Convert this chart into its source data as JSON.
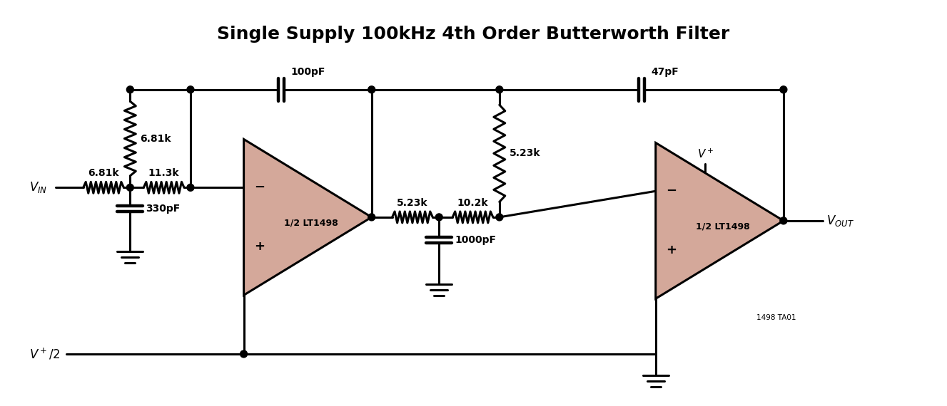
{
  "title": "Single Supply 100kHz 4th Order Butterworth Filter",
  "title_fontsize": 18,
  "title_fontweight": "bold",
  "bg_color": "#ffffff",
  "line_color": "#000000",
  "op_amp_fill": "#d4a89a",
  "op_amp_edge": "#000000",
  "lw": 2.2,
  "labels": {
    "r1": "6.81k",
    "r2": "6.81k",
    "r3": "11.3k",
    "c1": "330pF",
    "c2": "100pF",
    "r4": "5.23k",
    "r5": "10.2k",
    "c3": "1000pF",
    "r6": "5.23k",
    "c4": "47pF",
    "r_between": "5.23k",
    "vplus2": "V+/2",
    "vin": "VIN",
    "vout": "VOUT",
    "vplus": "V+",
    "opamp1": "1/2 LT1498",
    "opamp2": "1/2 LT1498",
    "tag": "1498 TA01"
  }
}
